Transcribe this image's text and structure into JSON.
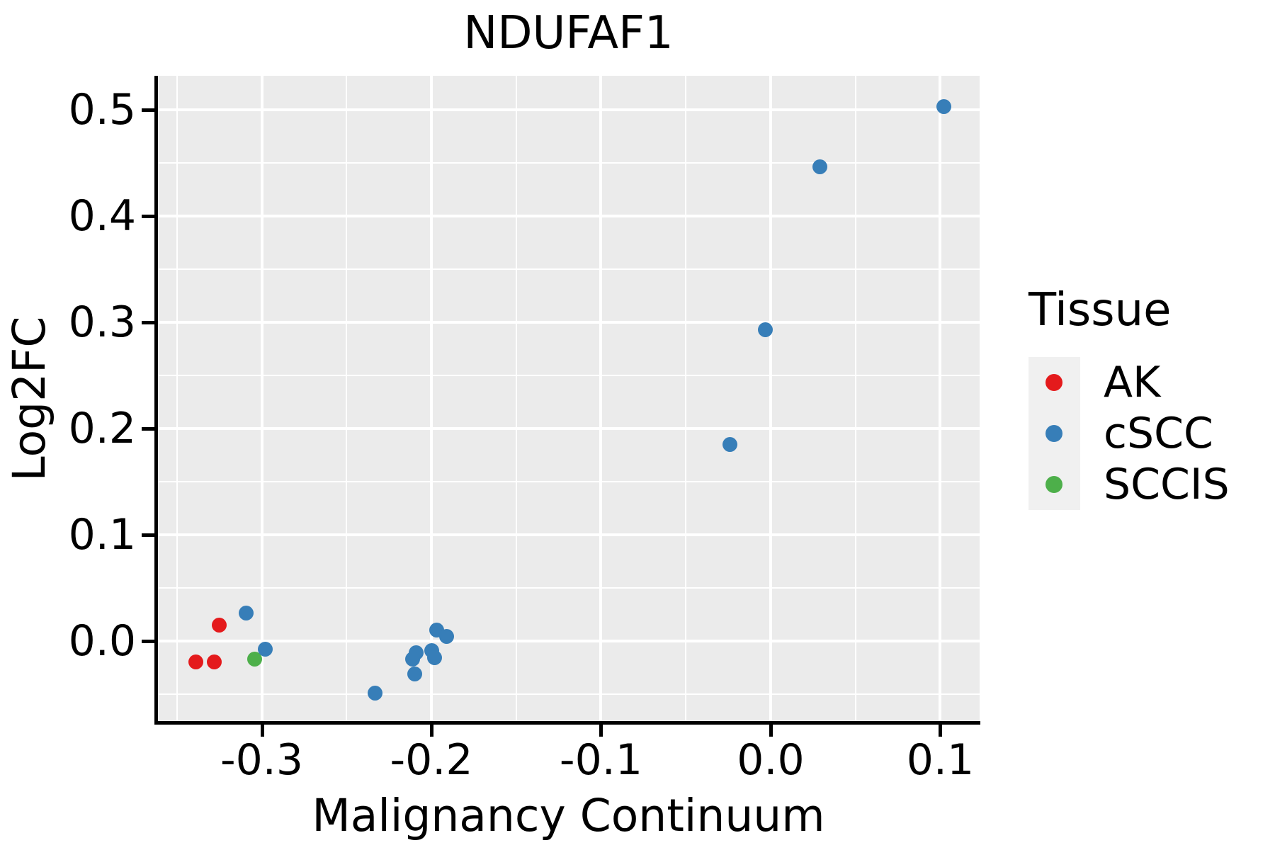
{
  "title": "NDUFAF1",
  "legend": {
    "title": "Tissue",
    "items": [
      {
        "label": "AK",
        "color": "#E41A1C"
      },
      {
        "label": "cSCC",
        "color": "#377EB8"
      },
      {
        "label": "SCCIS",
        "color": "#4DAF4A"
      }
    ]
  },
  "colors": {
    "panel_background": "#EBEBEB",
    "gridline": "#FFFFFF",
    "axis": "#000000",
    "text": "#000000",
    "legend_key_background": "#F0F0F0",
    "ak_red": "#E41A1C",
    "cscc_blue": "#377EB8",
    "sccis_green": "#4DAF4A"
  },
  "chart_data": {
    "type": "scatter",
    "title": "NDUFAF1",
    "xlabel": "Malignancy Continuum",
    "ylabel": "Log2FC",
    "xlim": [
      -0.3616,
      0.1232
    ],
    "ylim": [
      -0.0767,
      0.532
    ],
    "grid": true,
    "legend_position": "right",
    "x_major_ticks": {
      "values": [
        -0.3,
        -0.2,
        -0.1,
        0.0,
        0.1
      ],
      "labels": [
        "-0.3",
        "-0.2",
        "-0.1",
        "0.0",
        "0.1"
      ]
    },
    "y_major_ticks": {
      "values": [
        0.0,
        0.1,
        0.2,
        0.3,
        0.4,
        0.5
      ],
      "labels": [
        "0.0",
        "0.1",
        "0.2",
        "0.3",
        "0.4",
        "0.5"
      ]
    },
    "x_minor_ticks": [
      -0.35,
      -0.25,
      -0.15,
      -0.05,
      0.05
    ],
    "y_minor_ticks": [
      -0.05,
      0.05,
      0.15,
      0.25,
      0.35,
      0.45
    ],
    "series": [
      {
        "name": "AK",
        "color": "#E41A1C",
        "points": [
          [
            -0.325,
            0.015
          ],
          [
            -0.339,
            -0.02
          ],
          [
            -0.328,
            -0.02
          ]
        ]
      },
      {
        "name": "SCCIS",
        "color": "#4DAF4A",
        "points": [
          [
            -0.304,
            -0.017
          ]
        ]
      },
      {
        "name": "cSCC",
        "color": "#377EB8",
        "points": [
          [
            0.102,
            0.503
          ],
          [
            0.029,
            0.446
          ],
          [
            -0.003,
            0.293
          ],
          [
            -0.024,
            0.185
          ],
          [
            -0.309,
            0.026
          ],
          [
            -0.298,
            -0.008
          ],
          [
            -0.197,
            0.01
          ],
          [
            -0.191,
            0.004
          ],
          [
            -0.209,
            -0.011
          ],
          [
            -0.211,
            -0.017
          ],
          [
            -0.2,
            -0.009
          ],
          [
            -0.198,
            -0.016
          ],
          [
            -0.21,
            -0.031
          ],
          [
            -0.233,
            -0.049
          ]
        ]
      }
    ]
  }
}
